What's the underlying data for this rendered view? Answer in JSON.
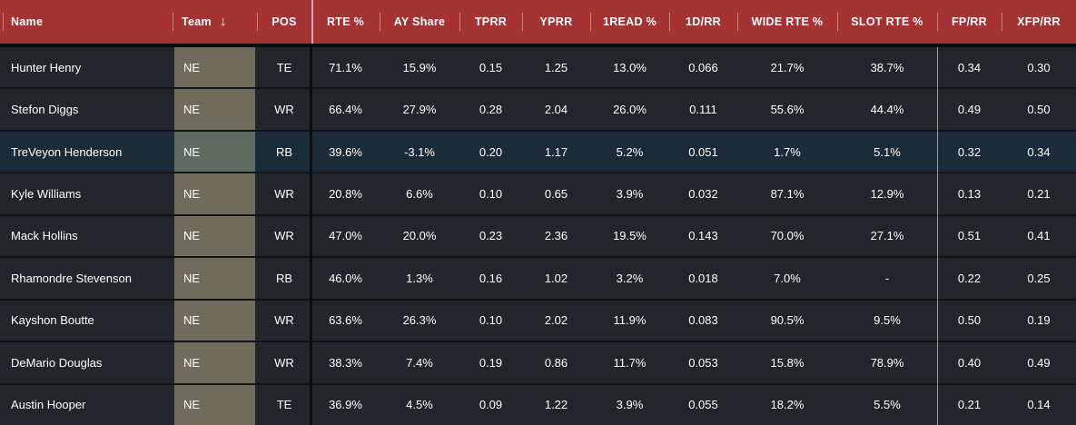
{
  "colors": {
    "header_bg": "#a53334",
    "row_bg": "#22252a",
    "row_highlight_bg": "#1c2b3a",
    "team_cell_bg": "#706c5b",
    "team_cell_highlight_bg": "#5d6b61",
    "text": "#ffffff"
  },
  "table": {
    "sort_icon": "↓",
    "sorted_column": "Team",
    "highlighted_row_index": 2,
    "columns": [
      {
        "label": "Name"
      },
      {
        "label": "Team"
      },
      {
        "label": "POS"
      },
      {
        "label": "RTE %"
      },
      {
        "label": "AY Share"
      },
      {
        "label": "TPRR"
      },
      {
        "label": "YPRR"
      },
      {
        "label": "1READ %"
      },
      {
        "label": "1D/RR"
      },
      {
        "label": "WIDE RTE %"
      },
      {
        "label": "SLOT RTE %"
      },
      {
        "label": "FP/RR"
      },
      {
        "label": "XFP/RR"
      }
    ],
    "rows": [
      {
        "cells": [
          "Hunter Henry",
          "NE",
          "TE",
          "71.1%",
          "15.9%",
          "0.15",
          "1.25",
          "13.0%",
          "0.066",
          "21.7%",
          "38.7%",
          "0.34",
          "0.30"
        ]
      },
      {
        "cells": [
          "Stefon Diggs",
          "NE",
          "WR",
          "66.4%",
          "27.9%",
          "0.28",
          "2.04",
          "26.0%",
          "0.111",
          "55.6%",
          "44.4%",
          "0.49",
          "0.50"
        ]
      },
      {
        "cells": [
          "TreVeyon Henderson",
          "NE",
          "RB",
          "39.6%",
          "-3.1%",
          "0.20",
          "1.17",
          "5.2%",
          "0.051",
          "1.7%",
          "5.1%",
          "0.32",
          "0.34"
        ]
      },
      {
        "cells": [
          "Kyle Williams",
          "NE",
          "WR",
          "20.8%",
          "6.6%",
          "0.10",
          "0.65",
          "3.9%",
          "0.032",
          "87.1%",
          "12.9%",
          "0.13",
          "0.21"
        ]
      },
      {
        "cells": [
          "Mack Hollins",
          "NE",
          "WR",
          "47.0%",
          "20.0%",
          "0.23",
          "2.36",
          "19.5%",
          "0.143",
          "70.0%",
          "27.1%",
          "0.51",
          "0.41"
        ]
      },
      {
        "cells": [
          "Rhamondre Stevenson",
          "NE",
          "RB",
          "46.0%",
          "1.3%",
          "0.16",
          "1.02",
          "3.2%",
          "0.018",
          "7.0%",
          "-",
          "0.22",
          "0.25"
        ]
      },
      {
        "cells": [
          "Kayshon Boutte",
          "NE",
          "WR",
          "63.6%",
          "26.3%",
          "0.10",
          "2.02",
          "11.9%",
          "0.083",
          "90.5%",
          "9.5%",
          "0.50",
          "0.19"
        ]
      },
      {
        "cells": [
          "DeMario Douglas",
          "NE",
          "WR",
          "38.3%",
          "7.4%",
          "0.19",
          "0.86",
          "11.7%",
          "0.053",
          "15.8%",
          "78.9%",
          "0.40",
          "0.49"
        ]
      },
      {
        "cells": [
          "Austin Hooper",
          "NE",
          "TE",
          "36.9%",
          "4.5%",
          "0.09",
          "1.22",
          "3.9%",
          "0.055",
          "18.2%",
          "5.5%",
          "0.21",
          "0.14"
        ]
      }
    ]
  }
}
